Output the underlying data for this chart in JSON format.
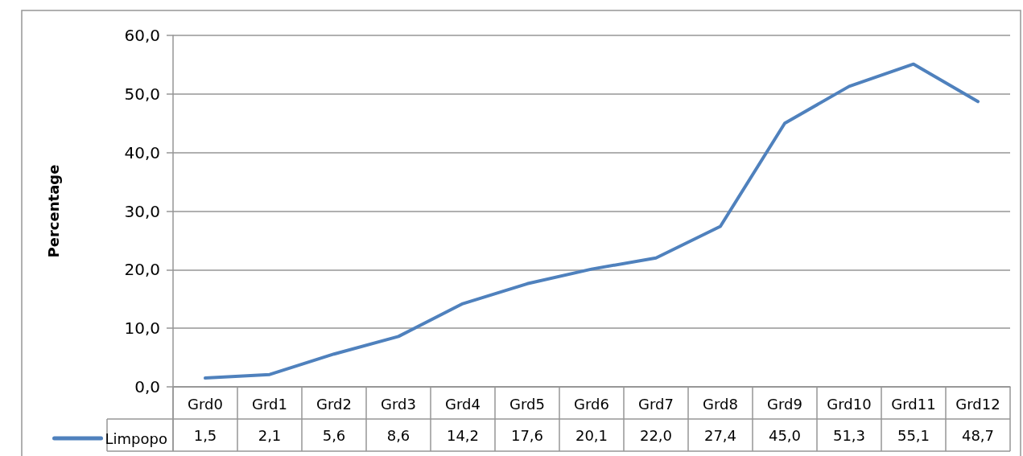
{
  "chart_data": {
    "type": "line",
    "ylabel": "Percentage",
    "categories": [
      "Grd0",
      "Grd1",
      "Grd2",
      "Grd3",
      "Grd4",
      "Grd5",
      "Grd6",
      "Grd7",
      "Grd8",
      "Grd9",
      "Grd10",
      "Grd11",
      "Grd12"
    ],
    "series": [
      {
        "name": "Limpopo",
        "color": "#4f81bd",
        "values": [
          1.5,
          2.1,
          5.6,
          8.6,
          14.2,
          17.6,
          20.1,
          22.0,
          27.4,
          45.0,
          51.3,
          55.1,
          48.7
        ],
        "value_labels": [
          "1,5",
          "2,1",
          "5,6",
          "8,6",
          "14,2",
          "17,6",
          "20,1",
          "22,0",
          "27,4",
          "45,0",
          "51,3",
          "55,1",
          "48,7"
        ]
      }
    ],
    "ylim": [
      0,
      60
    ],
    "yticks": [
      {
        "value": 0,
        "label": "0,0"
      },
      {
        "value": 10,
        "label": "10,0"
      },
      {
        "value": 20,
        "label": "20,0"
      },
      {
        "value": 30,
        "label": "30,0"
      },
      {
        "value": 40,
        "label": "40,0"
      },
      {
        "value": 50,
        "label": "50,0"
      },
      {
        "value": 60,
        "label": "60,0"
      }
    ],
    "grid": "y",
    "legend": "bottom",
    "marker": "none",
    "line_style": "solid"
  }
}
